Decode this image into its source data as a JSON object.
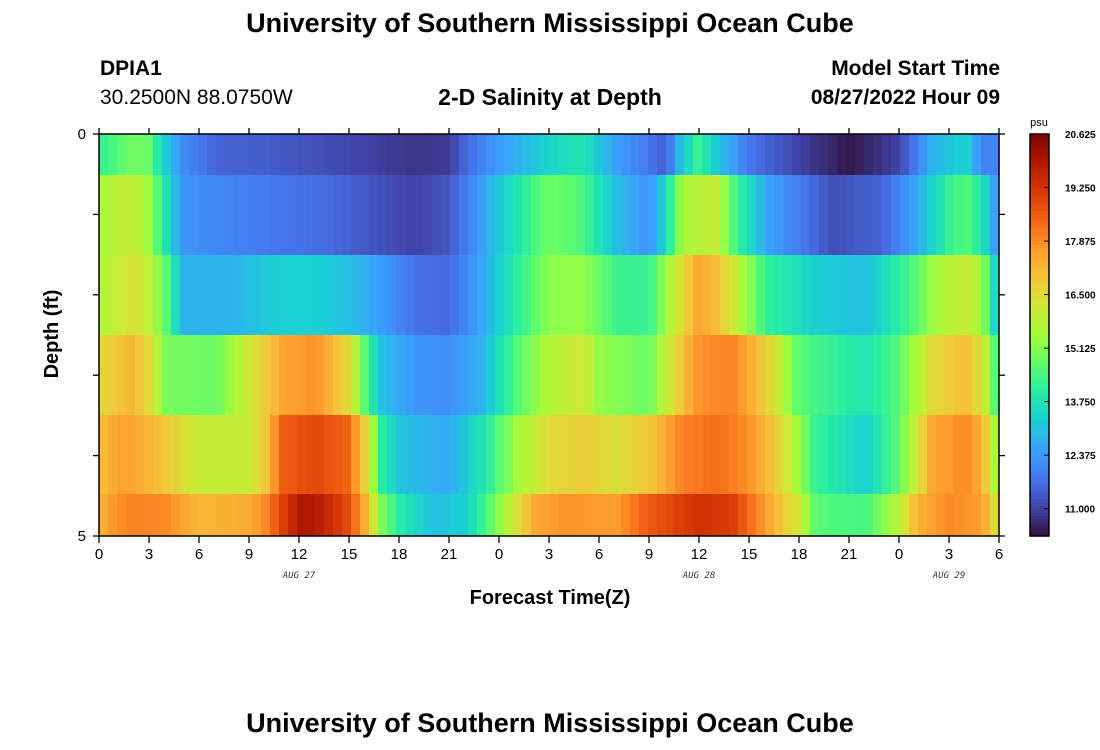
{
  "header": {
    "title": "University of Southern Mississippi Ocean Cube",
    "station_id": "DPIA1",
    "station_coords": "30.2500N  88.0750W",
    "plot_title": "2-D Salinity at Depth",
    "model_start_label": "Model Start Time",
    "model_start_value": "08/27/2022 Hour 09"
  },
  "footer": {
    "title": "University of Southern Mississippi Ocean Cube"
  },
  "chart_data": {
    "type": "heatmap",
    "title": "2-D Salinity at Depth",
    "xlabel": "Forecast Time(Z)",
    "ylabel": "Depth (ft)",
    "x_tick_labels": [
      "0",
      "3",
      "6",
      "9",
      "12",
      "15",
      "18",
      "21",
      "0",
      "3",
      "6",
      "9",
      "12",
      "15",
      "18",
      "21",
      "0",
      "3",
      "6"
    ],
    "x_date_labels": [
      {
        "text": "AUG 27",
        "at_tick": 4
      },
      {
        "text": "AUG 28",
        "at_tick": 12
      },
      {
        "text": "AUG 29",
        "at_tick": 17
      }
    ],
    "x_range_hours": [
      0,
      54
    ],
    "y_tick_labels": [
      "0",
      "5"
    ],
    "y_range": [
      0,
      5
    ],
    "colorbar": {
      "unit": "psu",
      "min": 10.3,
      "max": 20.625,
      "tick_values": [
        "20.625",
        "19.250",
        "17.875",
        "16.500",
        "15.125",
        "13.750",
        "12.375",
        "11.000"
      ],
      "colors": [
        "#30123b",
        "#4145ab",
        "#4675ed",
        "#39a2fc",
        "#1bcfd4",
        "#24eca6",
        "#61fc6c",
        "#a4fc3b",
        "#d1e834",
        "#f3c63a",
        "#fe9b2d",
        "#f36315",
        "#d93806",
        "#b11901",
        "#7a0402"
      ]
    },
    "rows": [
      {
        "depth_band": "0.0-0.5",
        "salinity_by_hour": [
          [
            0,
            14.2
          ],
          [
            1,
            14.5
          ],
          [
            2,
            14.9
          ],
          [
            3,
            14.8
          ],
          [
            4,
            13.2
          ],
          [
            5,
            12.2
          ],
          [
            7,
            11.5
          ],
          [
            10,
            11.4
          ],
          [
            13,
            11.2
          ],
          [
            16,
            11.0
          ],
          [
            19,
            10.8
          ],
          [
            21,
            10.9
          ],
          [
            22,
            11.6
          ],
          [
            24,
            12.4
          ],
          [
            27,
            13.4
          ],
          [
            29,
            13.8
          ],
          [
            31,
            12.5
          ],
          [
            33,
            11.8
          ],
          [
            34,
            11.4
          ],
          [
            35,
            13.2
          ],
          [
            36,
            14.3
          ],
          [
            37,
            13.2
          ],
          [
            39,
            11.8
          ],
          [
            42,
            11.0
          ],
          [
            45,
            10.4
          ],
          [
            48,
            11.0
          ],
          [
            50,
            12.8
          ],
          [
            52,
            13.4
          ],
          [
            53,
            12.0
          ],
          [
            54,
            12.0
          ]
        ]
      },
      {
        "depth_band": "0.5-1.5",
        "salinity_by_hour": [
          [
            0,
            15.5
          ],
          [
            1,
            15.8
          ],
          [
            2,
            16.0
          ],
          [
            3,
            15.4
          ],
          [
            4,
            13.8
          ],
          [
            5,
            12.3
          ],
          [
            8,
            12.0
          ],
          [
            11,
            11.8
          ],
          [
            14,
            11.6
          ],
          [
            17,
            11.2
          ],
          [
            19,
            11.0
          ],
          [
            21,
            11.3
          ],
          [
            23,
            12.5
          ],
          [
            25,
            13.8
          ],
          [
            27,
            14.9
          ],
          [
            29,
            14.5
          ],
          [
            31,
            13.0
          ],
          [
            33,
            12.2
          ],
          [
            34,
            13.5
          ],
          [
            35,
            15.6
          ],
          [
            37,
            16.0
          ],
          [
            38,
            14.6
          ],
          [
            40,
            12.6
          ],
          [
            44,
            11.2
          ],
          [
            47,
            11.5
          ],
          [
            49,
            12.6
          ],
          [
            51,
            14.2
          ],
          [
            52,
            14.6
          ],
          [
            53,
            13.8
          ],
          [
            54,
            12.0
          ]
        ]
      },
      {
        "depth_band": "1.5-2.5",
        "salinity_by_hour": [
          [
            0,
            15.6
          ],
          [
            1,
            16.0
          ],
          [
            2,
            16.4
          ],
          [
            3,
            15.9
          ],
          [
            4,
            14.7
          ],
          [
            5,
            12.8
          ],
          [
            8,
            12.8
          ],
          [
            11,
            13.3
          ],
          [
            13,
            13.3
          ],
          [
            15,
            13.0
          ],
          [
            17,
            12.4
          ],
          [
            19,
            11.7
          ],
          [
            21,
            11.6
          ],
          [
            23,
            12.6
          ],
          [
            25,
            14.0
          ],
          [
            27,
            15.2
          ],
          [
            29,
            15.3
          ],
          [
            31,
            14.3
          ],
          [
            33,
            14.2
          ],
          [
            35,
            16.5
          ],
          [
            36,
            17.5
          ],
          [
            37,
            17.1
          ],
          [
            38,
            16.2
          ],
          [
            40,
            14.2
          ],
          [
            43,
            13.3
          ],
          [
            46,
            13.0
          ],
          [
            49,
            14.6
          ],
          [
            50,
            15.4
          ],
          [
            52,
            16.1
          ],
          [
            53,
            15.4
          ],
          [
            54,
            12.8
          ]
        ]
      },
      {
        "depth_band": "2.5-3.5",
        "salinity_by_hour": [
          [
            0,
            16.5
          ],
          [
            1,
            16.9
          ],
          [
            2,
            17.2
          ],
          [
            3,
            16.5
          ],
          [
            4,
            15.0
          ],
          [
            7,
            14.8
          ],
          [
            10,
            16.8
          ],
          [
            11,
            17.5
          ],
          [
            13,
            17.8
          ],
          [
            15,
            16.5
          ],
          [
            16,
            14.5
          ],
          [
            17,
            13.0
          ],
          [
            19,
            12.3
          ],
          [
            21,
            12.2
          ],
          [
            23,
            12.8
          ],
          [
            25,
            14.5
          ],
          [
            27,
            15.7
          ],
          [
            29,
            16.2
          ],
          [
            30,
            15.3
          ],
          [
            33,
            14.8
          ],
          [
            35,
            17.0
          ],
          [
            36,
            17.8
          ],
          [
            38,
            18.0
          ],
          [
            40,
            16.8
          ],
          [
            42,
            14.6
          ],
          [
            46,
            13.8
          ],
          [
            48,
            14.6
          ],
          [
            50,
            16.5
          ],
          [
            52,
            17.1
          ],
          [
            53,
            16.3
          ],
          [
            54,
            14.0
          ]
        ]
      },
      {
        "depth_band": "3.5-4.5",
        "salinity_by_hour": [
          [
            0,
            17.0
          ],
          [
            1,
            17.5
          ],
          [
            2,
            17.5
          ],
          [
            4,
            16.9
          ],
          [
            6,
            16.0
          ],
          [
            9,
            16.0
          ],
          [
            10,
            16.9
          ],
          [
            11,
            18.5
          ],
          [
            13,
            18.9
          ],
          [
            15,
            18.4
          ],
          [
            16,
            16.6
          ],
          [
            17,
            14.0
          ],
          [
            18,
            13.1
          ],
          [
            21,
            12.6
          ],
          [
            23,
            13.8
          ],
          [
            25,
            15.4
          ],
          [
            27,
            16.5
          ],
          [
            29,
            16.8
          ],
          [
            31,
            16.4
          ],
          [
            33,
            16.9
          ],
          [
            35,
            18.0
          ],
          [
            37,
            18.3
          ],
          [
            39,
            17.8
          ],
          [
            41,
            16.5
          ],
          [
            43,
            14.2
          ],
          [
            46,
            13.3
          ],
          [
            48,
            14.7
          ],
          [
            50,
            17.5
          ],
          [
            52,
            17.9
          ],
          [
            53,
            17.3
          ],
          [
            54,
            15.0
          ]
        ]
      },
      {
        "depth_band": "4.5-5.0",
        "salinity_by_hour": [
          [
            0,
            17.2
          ],
          [
            1,
            17.8
          ],
          [
            2,
            18.0
          ],
          [
            4,
            17.9
          ],
          [
            6,
            17.2
          ],
          [
            9,
            17.4
          ],
          [
            10,
            17.9
          ],
          [
            11,
            19.0
          ],
          [
            12,
            19.9
          ],
          [
            13,
            19.9
          ],
          [
            15,
            18.8
          ],
          [
            16,
            17.3
          ],
          [
            17,
            15.0
          ],
          [
            18,
            14.0
          ],
          [
            20,
            13.0
          ],
          [
            22,
            13.3
          ],
          [
            24,
            15.2
          ],
          [
            26,
            17.4
          ],
          [
            28,
            17.8
          ],
          [
            31,
            17.6
          ],
          [
            33,
            18.6
          ],
          [
            36,
            19.3
          ],
          [
            38,
            19.1
          ],
          [
            40,
            17.6
          ],
          [
            42,
            16.2
          ],
          [
            43,
            14.6
          ],
          [
            46,
            14.4
          ],
          [
            48,
            15.8
          ],
          [
            49,
            17.2
          ],
          [
            51,
            17.9
          ],
          [
            53,
            17.6
          ],
          [
            54,
            16.0
          ]
        ]
      }
    ]
  }
}
